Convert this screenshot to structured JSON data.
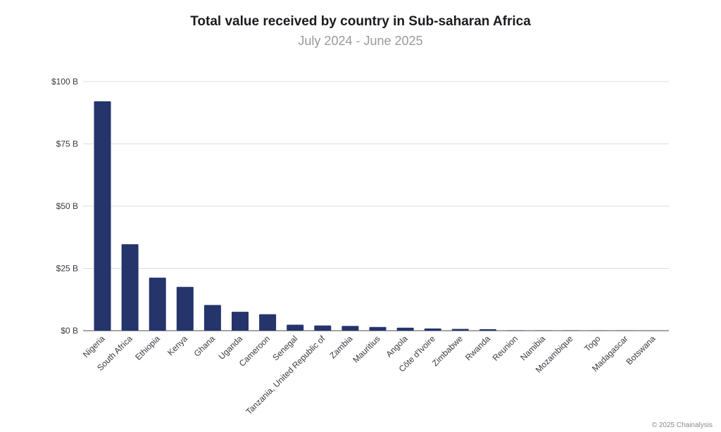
{
  "chart_data": {
    "type": "bar",
    "title": "Total value received by country in Sub-saharan Africa",
    "subtitle": "July 2024 - June 2025",
    "xlabel": "",
    "ylabel": "",
    "ylim": [
      0,
      100
    ],
    "yticks": [
      0,
      25,
      50,
      75,
      100
    ],
    "ytick_labels": [
      "$0 B",
      "$25 B",
      "$50 B",
      "$75 B",
      "$100 B"
    ],
    "grid": true,
    "bar_color": "#25346b",
    "categories": [
      "Nigeria",
      "South Africa",
      "Ethiopia",
      "Kenya",
      "Ghana",
      "Uganda",
      "Cameroon",
      "Senegal",
      "Tanzania, United Republic of",
      "Zambia",
      "Mauritius",
      "Angola",
      "Côte d'Ivoire",
      "Zimbabwe",
      "Rwanda",
      "Reunion",
      "Namibia",
      "Mozambique",
      "Togo",
      "Madagascar",
      "Botswana"
    ],
    "values": [
      92.1,
      34.7,
      21.3,
      17.6,
      10.3,
      7.6,
      6.6,
      2.4,
      2.1,
      1.9,
      1.5,
      1.2,
      0.9,
      0.7,
      0.6,
      0.15,
      0.12,
      0.1,
      0.08,
      0.06,
      0.05
    ]
  },
  "footer": {
    "copyright": "© 2025 Chainalysis"
  }
}
